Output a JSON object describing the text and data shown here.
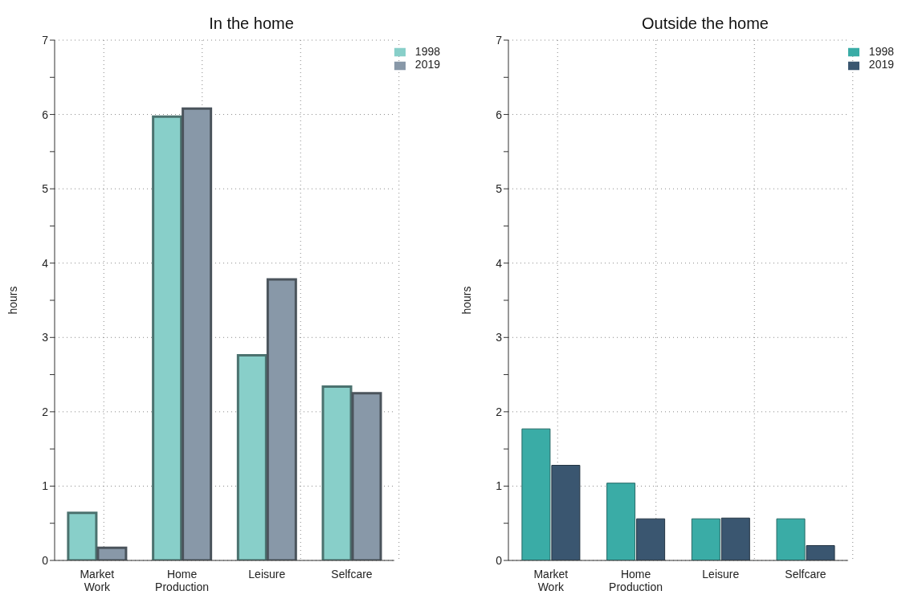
{
  "chart_data": [
    {
      "type": "bar",
      "title": "In the home",
      "ylabel": "hours",
      "categories": [
        "Market Work",
        "Home Production",
        "Leisure",
        "Selfcare"
      ],
      "series": [
        {
          "name": "1998",
          "color": "#88cfc9",
          "values": [
            0.64,
            5.97,
            2.76,
            2.34
          ]
        },
        {
          "name": "2019",
          "color": "#8898a8",
          "values": [
            0.17,
            6.08,
            3.78,
            2.25
          ]
        }
      ],
      "ylim": [
        0,
        7
      ],
      "yticks": [
        0,
        {
          "value": 0.5,
          "label": null
        },
        1,
        {
          "value": 1.5,
          "label": null
        },
        2,
        {
          "value": 2.5,
          "label": null
        },
        3,
        {
          "value": 3.5,
          "label": null
        },
        4,
        {
          "value": 4.5,
          "label": null
        },
        5,
        {
          "value": 5.5,
          "label": null
        },
        6,
        {
          "value": 6.5,
          "label": null
        },
        7
      ],
      "grid": true,
      "legend": "top right"
    },
    {
      "type": "bar",
      "title": "Outside the home",
      "ylabel": "hours",
      "categories": [
        "Market Work",
        "Home Production",
        "Leisure",
        "Selfcare"
      ],
      "series": [
        {
          "name": "1998",
          "color": "#3aaca6",
          "values": [
            1.77,
            1.04,
            0.56,
            0.56
          ]
        },
        {
          "name": "2019",
          "color": "#3a5670",
          "values": [
            1.28,
            0.56,
            0.57,
            0.2
          ]
        }
      ],
      "ylim": [
        0,
        7
      ],
      "yticks": [
        0,
        {
          "value": 0.5,
          "label": null
        },
        1,
        {
          "value": 1.5,
          "label": null
        },
        2,
        {
          "value": 2.5,
          "label": null
        },
        3,
        {
          "value": 3.5,
          "label": null
        },
        4,
        {
          "value": 4.5,
          "label": null
        },
        5,
        {
          "value": 5.5,
          "label": null
        },
        6,
        {
          "value": 6.5,
          "label": null
        },
        7
      ],
      "grid": true,
      "legend": "top right"
    }
  ]
}
